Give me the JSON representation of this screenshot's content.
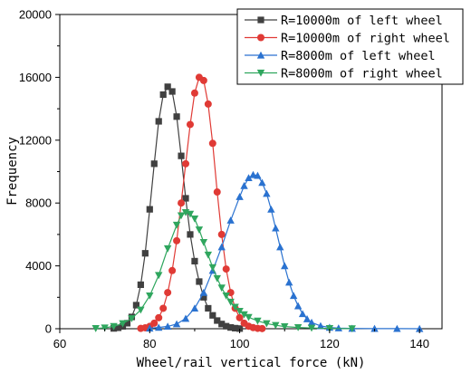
{
  "chart_data": {
    "type": "line",
    "xlabel": "Wheel/rail vertical force (kN)",
    "ylabel": "Frequency",
    "xlim": [
      60,
      145
    ],
    "ylim": [
      0,
      20000
    ],
    "xticks": [
      60,
      80,
      100,
      120,
      140
    ],
    "yticks": [
      0,
      4000,
      8000,
      12000,
      16000,
      20000
    ],
    "xtick_labels": [
      "60",
      "80",
      "100",
      "120",
      "140"
    ],
    "ytick_labels": [
      "0",
      "4000",
      "8000",
      "12000",
      "16000",
      "20000"
    ],
    "grid": false,
    "legend_position": "top-right",
    "series": [
      {
        "name": "R=10000m of left wheel",
        "color": "#404040",
        "marker": "square",
        "points": [
          [
            72,
            20
          ],
          [
            73,
            60
          ],
          [
            74,
            150
          ],
          [
            75,
            350
          ],
          [
            76,
            750
          ],
          [
            77,
            1500
          ],
          [
            78,
            2800
          ],
          [
            79,
            4800
          ],
          [
            80,
            7600
          ],
          [
            81,
            10500
          ],
          [
            82,
            13200
          ],
          [
            83,
            14900
          ],
          [
            84,
            15400
          ],
          [
            85,
            15100
          ],
          [
            86,
            13500
          ],
          [
            87,
            11000
          ],
          [
            88,
            8300
          ],
          [
            89,
            6000
          ],
          [
            90,
            4300
          ],
          [
            91,
            3000
          ],
          [
            92,
            2000
          ],
          [
            93,
            1300
          ],
          [
            94,
            850
          ],
          [
            95,
            520
          ],
          [
            96,
            300
          ],
          [
            97,
            160
          ],
          [
            98,
            80
          ],
          [
            99,
            35
          ],
          [
            100,
            10
          ]
        ]
      },
      {
        "name": "R=10000m of right wheel",
        "color": "#e03a35",
        "marker": "circle",
        "points": [
          [
            78,
            20
          ],
          [
            79,
            60
          ],
          [
            80,
            150
          ],
          [
            81,
            350
          ],
          [
            82,
            700
          ],
          [
            83,
            1300
          ],
          [
            84,
            2300
          ],
          [
            85,
            3700
          ],
          [
            86,
            5600
          ],
          [
            87,
            8000
          ],
          [
            88,
            10500
          ],
          [
            89,
            13000
          ],
          [
            90,
            15000
          ],
          [
            91,
            16000
          ],
          [
            92,
            15800
          ],
          [
            93,
            14300
          ],
          [
            94,
            11800
          ],
          [
            95,
            8700
          ],
          [
            96,
            6000
          ],
          [
            97,
            3800
          ],
          [
            98,
            2300
          ],
          [
            99,
            1300
          ],
          [
            100,
            700
          ],
          [
            101,
            350
          ],
          [
            102,
            160
          ],
          [
            103,
            70
          ],
          [
            104,
            25
          ],
          [
            105,
            10
          ]
        ]
      },
      {
        "name": "R=8000m of left wheel",
        "color": "#2a72d0",
        "marker": "triangle-up",
        "points": [
          [
            80,
            30
          ],
          [
            82,
            80
          ],
          [
            84,
            150
          ],
          [
            86,
            300
          ],
          [
            88,
            650
          ],
          [
            90,
            1300
          ],
          [
            92,
            2300
          ],
          [
            94,
            3700
          ],
          [
            96,
            5200
          ],
          [
            98,
            6900
          ],
          [
            100,
            8400
          ],
          [
            101,
            9100
          ],
          [
            102,
            9600
          ],
          [
            103,
            9800
          ],
          [
            104,
            9750
          ],
          [
            105,
            9300
          ],
          [
            106,
            8600
          ],
          [
            107,
            7600
          ],
          [
            108,
            6400
          ],
          [
            109,
            5200
          ],
          [
            110,
            4000
          ],
          [
            111,
            2950
          ],
          [
            112,
            2100
          ],
          [
            113,
            1450
          ],
          [
            114,
            950
          ],
          [
            115,
            620
          ],
          [
            116,
            400
          ],
          [
            118,
            180
          ],
          [
            120,
            80
          ],
          [
            122,
            40
          ],
          [
            125,
            15
          ],
          [
            130,
            8
          ],
          [
            135,
            4
          ],
          [
            140,
            2
          ]
        ]
      },
      {
        "name": "R=8000m of right wheel",
        "color": "#2fa65e",
        "marker": "triangle-down",
        "points": [
          [
            68,
            20
          ],
          [
            70,
            60
          ],
          [
            72,
            150
          ],
          [
            74,
            330
          ],
          [
            76,
            650
          ],
          [
            78,
            1200
          ],
          [
            80,
            2100
          ],
          [
            82,
            3400
          ],
          [
            84,
            5100
          ],
          [
            86,
            6600
          ],
          [
            87,
            7200
          ],
          [
            88,
            7400
          ],
          [
            89,
            7300
          ],
          [
            90,
            7000
          ],
          [
            91,
            6300
          ],
          [
            92,
            5500
          ],
          [
            93,
            4700
          ],
          [
            94,
            3900
          ],
          [
            95,
            3200
          ],
          [
            96,
            2600
          ],
          [
            97,
            2100
          ],
          [
            98,
            1700
          ],
          [
            99,
            1380
          ],
          [
            100,
            1120
          ],
          [
            101,
            900
          ],
          [
            102,
            730
          ],
          [
            104,
            500
          ],
          [
            106,
            330
          ],
          [
            108,
            220
          ],
          [
            110,
            140
          ],
          [
            113,
            80
          ],
          [
            116,
            45
          ],
          [
            120,
            20
          ],
          [
            125,
            8
          ]
        ]
      }
    ]
  }
}
